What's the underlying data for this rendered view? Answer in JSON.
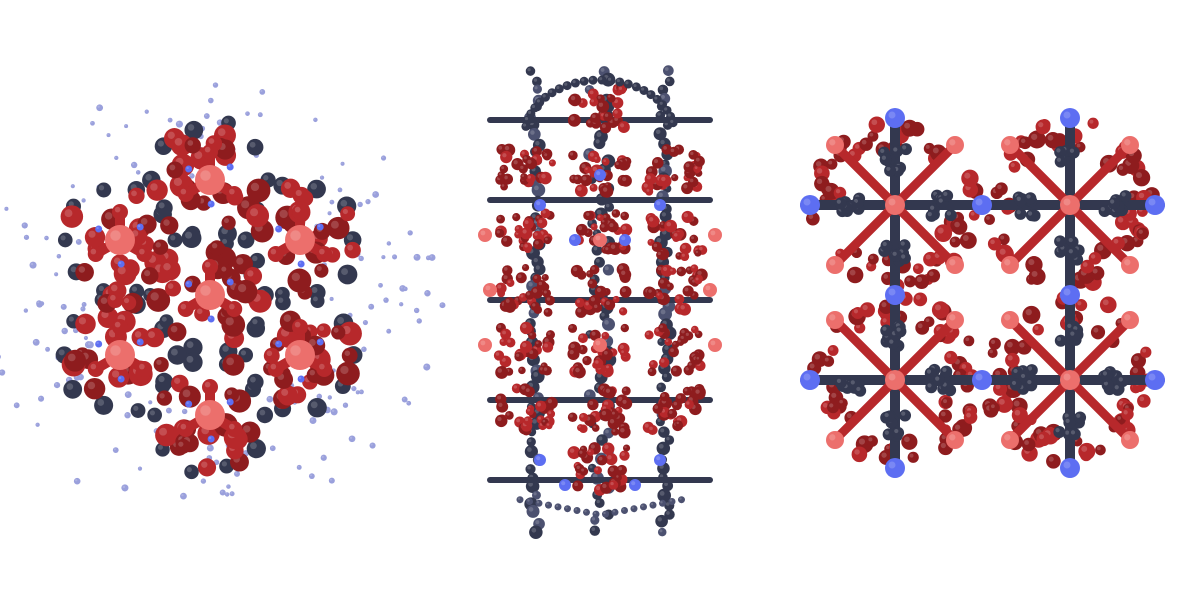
{
  "figure": {
    "background_color": "#ffffff",
    "panels": [
      {
        "id": "left",
        "view": "hexagonal"
      },
      {
        "id": "middle",
        "view": "elongated"
      },
      {
        "id": "right",
        "view": "square"
      }
    ]
  },
  "palette": {
    "dark_red": "#8e1c1e",
    "red": "#b7282b",
    "highlight_red": "#d75a5a",
    "salmon": "#ec6f6c",
    "navy": "#33384f",
    "navy_light": "#4c5170",
    "blue": "#5d6ef2",
    "pale_blue": "#9aa0dc"
  }
}
